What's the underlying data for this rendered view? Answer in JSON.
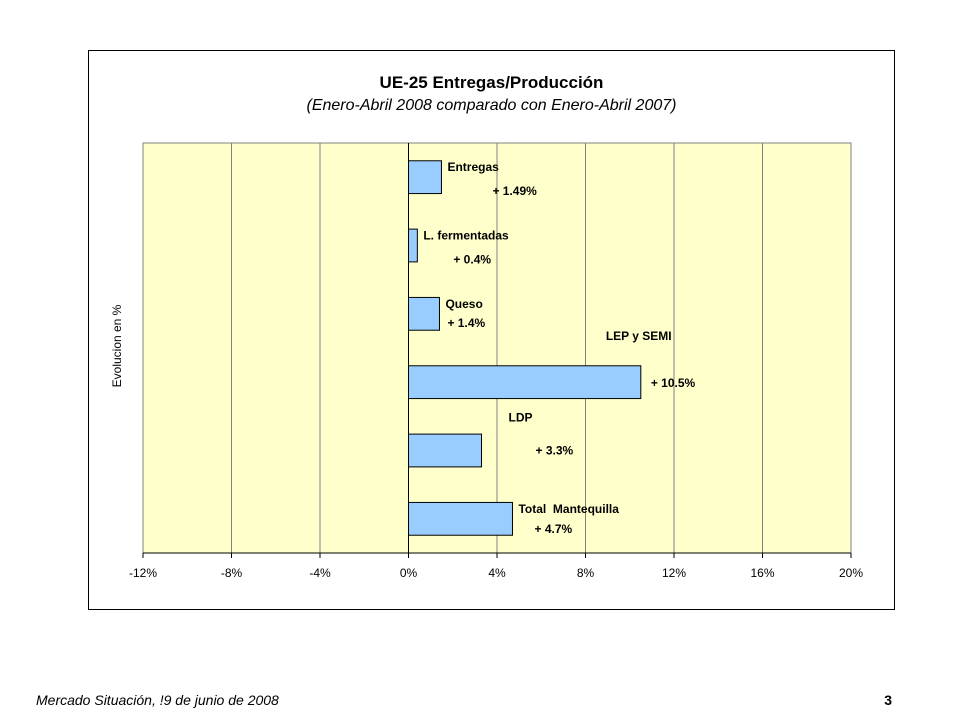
{
  "chart_data": {
    "type": "bar",
    "orientation": "horizontal",
    "title": "UE-25 Entregas/Producción",
    "subtitle": "(Enero-Abril 2008 comparado con Enero-Abril 2007)",
    "xlabel": "",
    "ylabel": "Evolucion en %",
    "xlim": [
      -12,
      20
    ],
    "xticks": [
      -12,
      -8,
      -4,
      0,
      4,
      8,
      12,
      16,
      20
    ],
    "xtick_labels": [
      "-12%",
      "-8%",
      "-4%",
      "0%",
      "4%",
      "8%",
      "12%",
      "16%",
      "20%"
    ],
    "grid": true,
    "categories": [
      "Entregas",
      "L. fermentadas",
      "Queso",
      "LEP y SEMI",
      "LDP",
      "Total  Mantequilla"
    ],
    "values": [
      1.49,
      0.4,
      1.4,
      10.5,
      3.3,
      4.7
    ],
    "data_labels": [
      "+ 1.49%",
      "+ 0.4%",
      "+ 1.4%",
      "+ 10.5%",
      "+ 3.3%",
      "+ 4.7%"
    ],
    "colors": {
      "plot_background": "#FFFFCC",
      "bar_fill": "#99CCFF",
      "bar_stroke": "#000000",
      "grid": "#808080"
    }
  },
  "footer": {
    "text": "Mercado Situación, !9 de junio de 2008",
    "page_number": "3"
  }
}
